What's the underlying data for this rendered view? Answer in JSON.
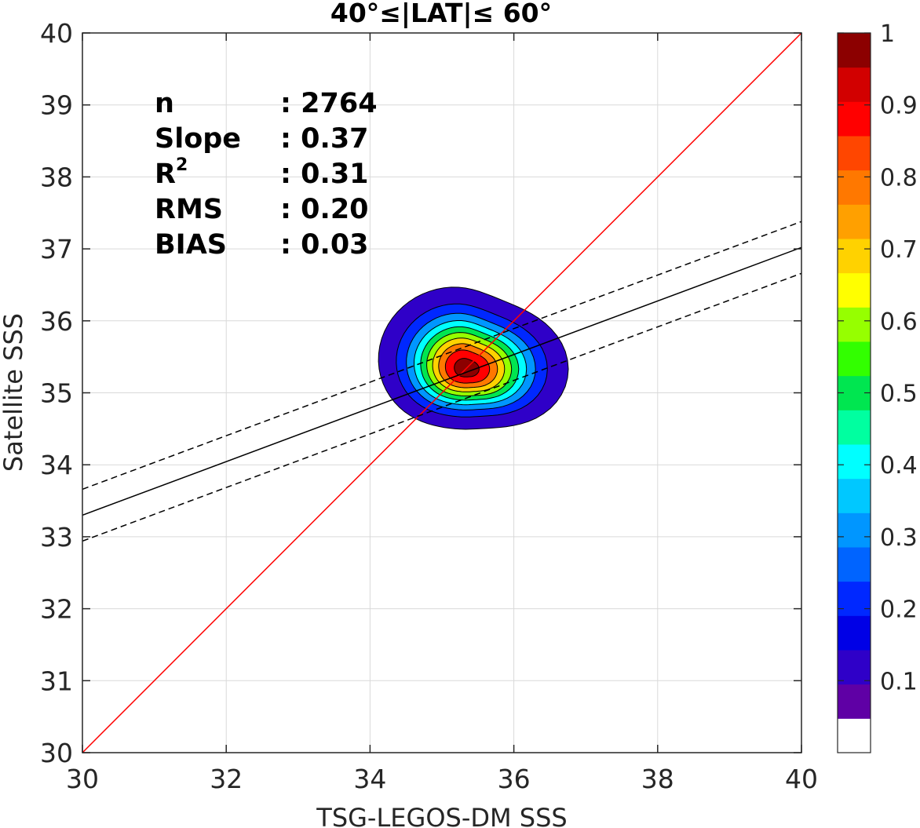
{
  "chart_data": {
    "type": "contour",
    "title": "40°≤|LAT|≤ 60°",
    "xlabel": "TSG-LEGOS-DM SSS",
    "ylabel": "Satellite SSS",
    "xlim": [
      30,
      40
    ],
    "ylim": [
      30,
      40
    ],
    "xticks": [
      "30",
      "32",
      "34",
      "36",
      "38",
      "40"
    ],
    "yticks": [
      "30",
      "31",
      "32",
      "33",
      "34",
      "35",
      "36",
      "37",
      "38",
      "39",
      "40"
    ],
    "grid": true,
    "stats": [
      {
        "label": "n",
        "value": ": 2764"
      },
      {
        "label": "Slope",
        "value": ": 0.37"
      },
      {
        "label": "R",
        "sup": "2",
        "value": ": 0.31"
      },
      {
        "label": "RMS",
        "value": ": 0.20"
      },
      {
        "label": "BIAS",
        "value": ": 0.03"
      }
    ],
    "density_center": [
      35.33,
      35.33
    ],
    "density_levels": [
      0.05,
      0.15,
      0.25,
      0.35,
      0.45,
      0.55,
      0.65,
      0.75,
      0.85,
      0.95
    ],
    "lines": [
      {
        "kind": "one-to-one",
        "color": "#ff0000",
        "style": "solid",
        "points": [
          [
            30,
            30
          ],
          [
            40,
            40
          ]
        ]
      },
      {
        "kind": "regression",
        "color": "#000000",
        "style": "solid",
        "points": [
          [
            30,
            33.3
          ],
          [
            40,
            37.02
          ]
        ]
      },
      {
        "kind": "upper-bound",
        "color": "#000000",
        "style": "dashed",
        "points": [
          [
            30,
            33.66
          ],
          [
            40,
            37.38
          ]
        ]
      },
      {
        "kind": "lower-bound",
        "color": "#000000",
        "style": "dashed",
        "points": [
          [
            30,
            32.94
          ],
          [
            40,
            36.66
          ]
        ]
      }
    ],
    "colorbar": {
      "ticks": [
        "0.1",
        "0.2",
        "0.3",
        "0.4",
        "0.5",
        "0.6",
        "0.7",
        "0.8",
        "0.9",
        "1"
      ],
      "range": [
        0,
        1
      ],
      "colors": [
        "#ffffff",
        "#5f00a5",
        "#2f00c8",
        "#0000e6",
        "#0028ff",
        "#0064ff",
        "#0096ff",
        "#00c8ff",
        "#00ffff",
        "#00ffa0",
        "#00e650",
        "#32ff00",
        "#96ff00",
        "#ffff00",
        "#ffd200",
        "#ffa000",
        "#ff7800",
        "#ff4600",
        "#ff0000",
        "#d20000",
        "#8c0000"
      ]
    }
  }
}
